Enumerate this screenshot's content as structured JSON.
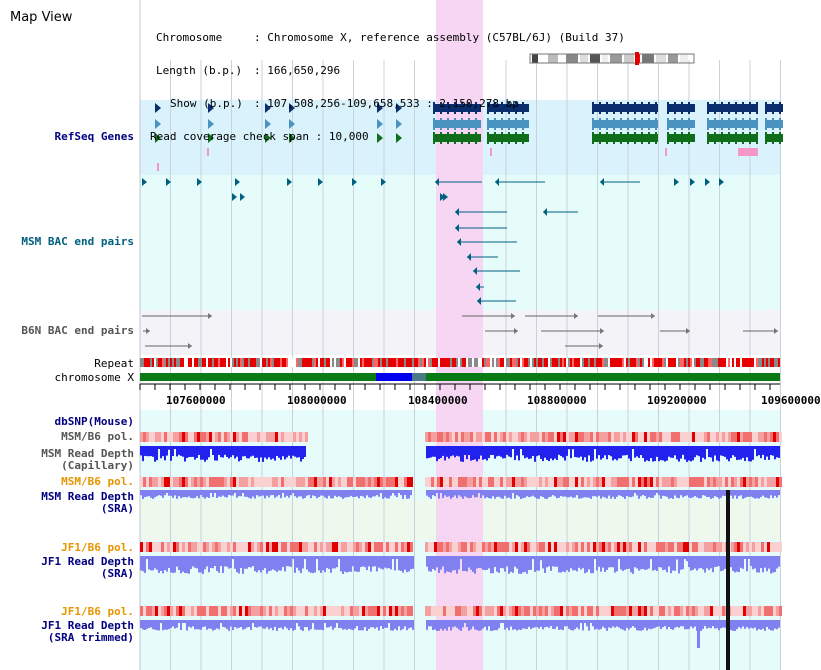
{
  "view_title": "Map View",
  "info": {
    "chromosome_label": "Chromosome",
    "chromosome_value": "Chromosome X, reference assembly (C57BL/6J) (Build 37)",
    "length_label": "Length (b.p.)",
    "length_value": "166,650,296",
    "show_label": "Show (b.p.)",
    "show_value": "107,508,256-109,658,533 : 2,150,278 bp",
    "coverage_label": "Read coverage check span",
    "coverage_value": "10,000"
  },
  "tracks": {
    "refseq": "RefSeq Genes",
    "msm_bac": "MSM BAC end pairs",
    "b6n_bac": "B6N BAC end pairs",
    "repeat": "Repeat",
    "chromosome": "chromosome X",
    "dbsnp": "dbSNP(Mouse)",
    "msm_b6_pol_1": "MSM/B6 pol.",
    "msm_depth_cap_1": "MSM Read Depth",
    "msm_depth_cap_2": "(Capillary)",
    "msm_b6_pol_2": "MSM/B6 pol.",
    "msm_depth_sra_1": "MSM Read Depth",
    "msm_depth_sra_2": "(SRA)",
    "jf1_b6_pol_1": "JF1/B6 pol.",
    "jf1_depth_sra_1": "JF1 Read Depth",
    "jf1_depth_sra_2": "(SRA)",
    "jf1_b6_pol_2": "JF1/B6 pol.",
    "jf1_depth_trim_1": "JF1 Read Depth",
    "jf1_depth_trim_2": "(SRA trimmed)"
  },
  "axis_ticks": [
    "107600000",
    "108000000",
    "108400000",
    "108800000",
    "109200000",
    "109600000"
  ],
  "colors": {
    "refseq_bg": "#d9f2fb",
    "bac_bg": "#e6fcfb",
    "b6n_bg": "#f4f4f8",
    "highlight": "#f7d6f3",
    "gene_dark": "#0a2d6e",
    "gene_light": "#4a92c0",
    "gene_green": "#0f6e1a",
    "chromosome_green": "#0a7a14",
    "chromosome_blue": "#0000ee",
    "depth_blue": "#2222ee",
    "depth_light": "#8080f0",
    "navy_label": "#000080",
    "orange_label": "#e69500",
    "gray_label": "#555555",
    "teal_label": "#006080"
  }
}
